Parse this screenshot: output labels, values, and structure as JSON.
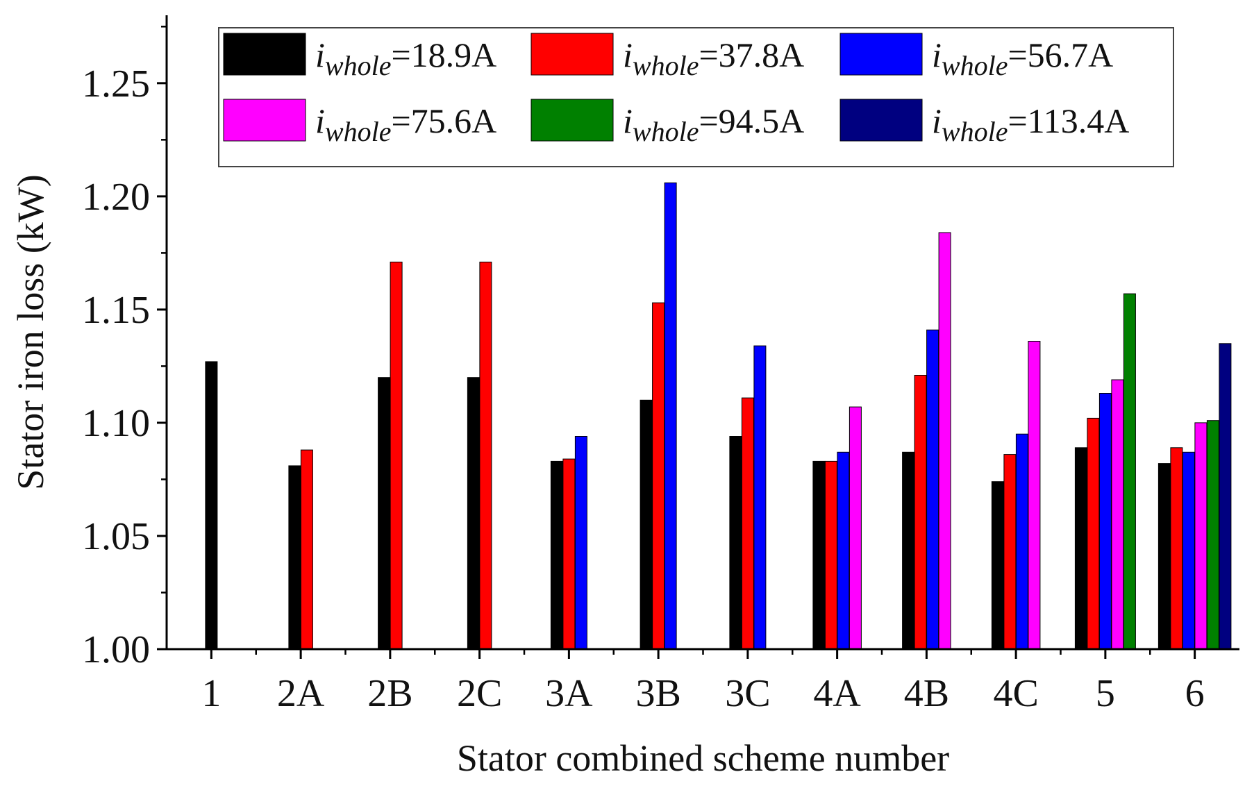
{
  "chart_data": {
    "type": "bar",
    "title": "",
    "xlabel": "Stator combined scheme number",
    "ylabel": "Stator iron loss (kW)",
    "ylim": [
      1.0,
      1.28
    ],
    "yticks": [
      "1.00",
      "1.05",
      "1.10",
      "1.15",
      "1.20",
      "1.25"
    ],
    "legend_position": "top",
    "categories": [
      "1",
      "2A",
      "2B",
      "2C",
      "3A",
      "3B",
      "3C",
      "4A",
      "4B",
      "4C",
      "5",
      "6"
    ],
    "series": [
      {
        "name": "i_whole=18.9A",
        "italic": "i",
        "sub": "whole",
        "rest": "=18.9A",
        "color": "#000000",
        "values": [
          1.127,
          1.081,
          1.12,
          1.12,
          1.083,
          1.11,
          1.094,
          1.083,
          1.087,
          1.074,
          1.089,
          1.082
        ]
      },
      {
        "name": "i_whole=37.8A",
        "italic": "i",
        "sub": "whole",
        "rest": "=37.8A",
        "color": "#ff0000",
        "values": [
          null,
          1.088,
          1.171,
          1.171,
          1.084,
          1.153,
          1.111,
          1.083,
          1.121,
          1.086,
          1.102,
          1.089
        ]
      },
      {
        "name": "i_whole=56.7A",
        "italic": "i",
        "sub": "whole",
        "rest": "=56.7A",
        "color": "#0000ff",
        "values": [
          null,
          null,
          null,
          null,
          1.094,
          1.206,
          1.134,
          1.087,
          1.141,
          1.095,
          1.113,
          1.087
        ]
      },
      {
        "name": "i_whole=75.6A",
        "italic": "i",
        "sub": "whole",
        "rest": "=75.6A",
        "color": "#ff00ff",
        "values": [
          null,
          null,
          null,
          null,
          null,
          null,
          null,
          1.107,
          1.184,
          1.136,
          1.119,
          1.1
        ]
      },
      {
        "name": "i_whole=94.5A",
        "italic": "i",
        "sub": "whole",
        "rest": "=94.5A",
        "color": "#008000",
        "values": [
          null,
          null,
          null,
          null,
          null,
          null,
          null,
          null,
          null,
          null,
          1.157,
          1.101
        ]
      },
      {
        "name": "i_whole=113.4A",
        "italic": "i",
        "sub": "whole",
        "rest": "=113.4A",
        "color": "#000080",
        "values": [
          null,
          null,
          null,
          null,
          null,
          null,
          null,
          null,
          null,
          null,
          null,
          1.135
        ]
      }
    ]
  }
}
